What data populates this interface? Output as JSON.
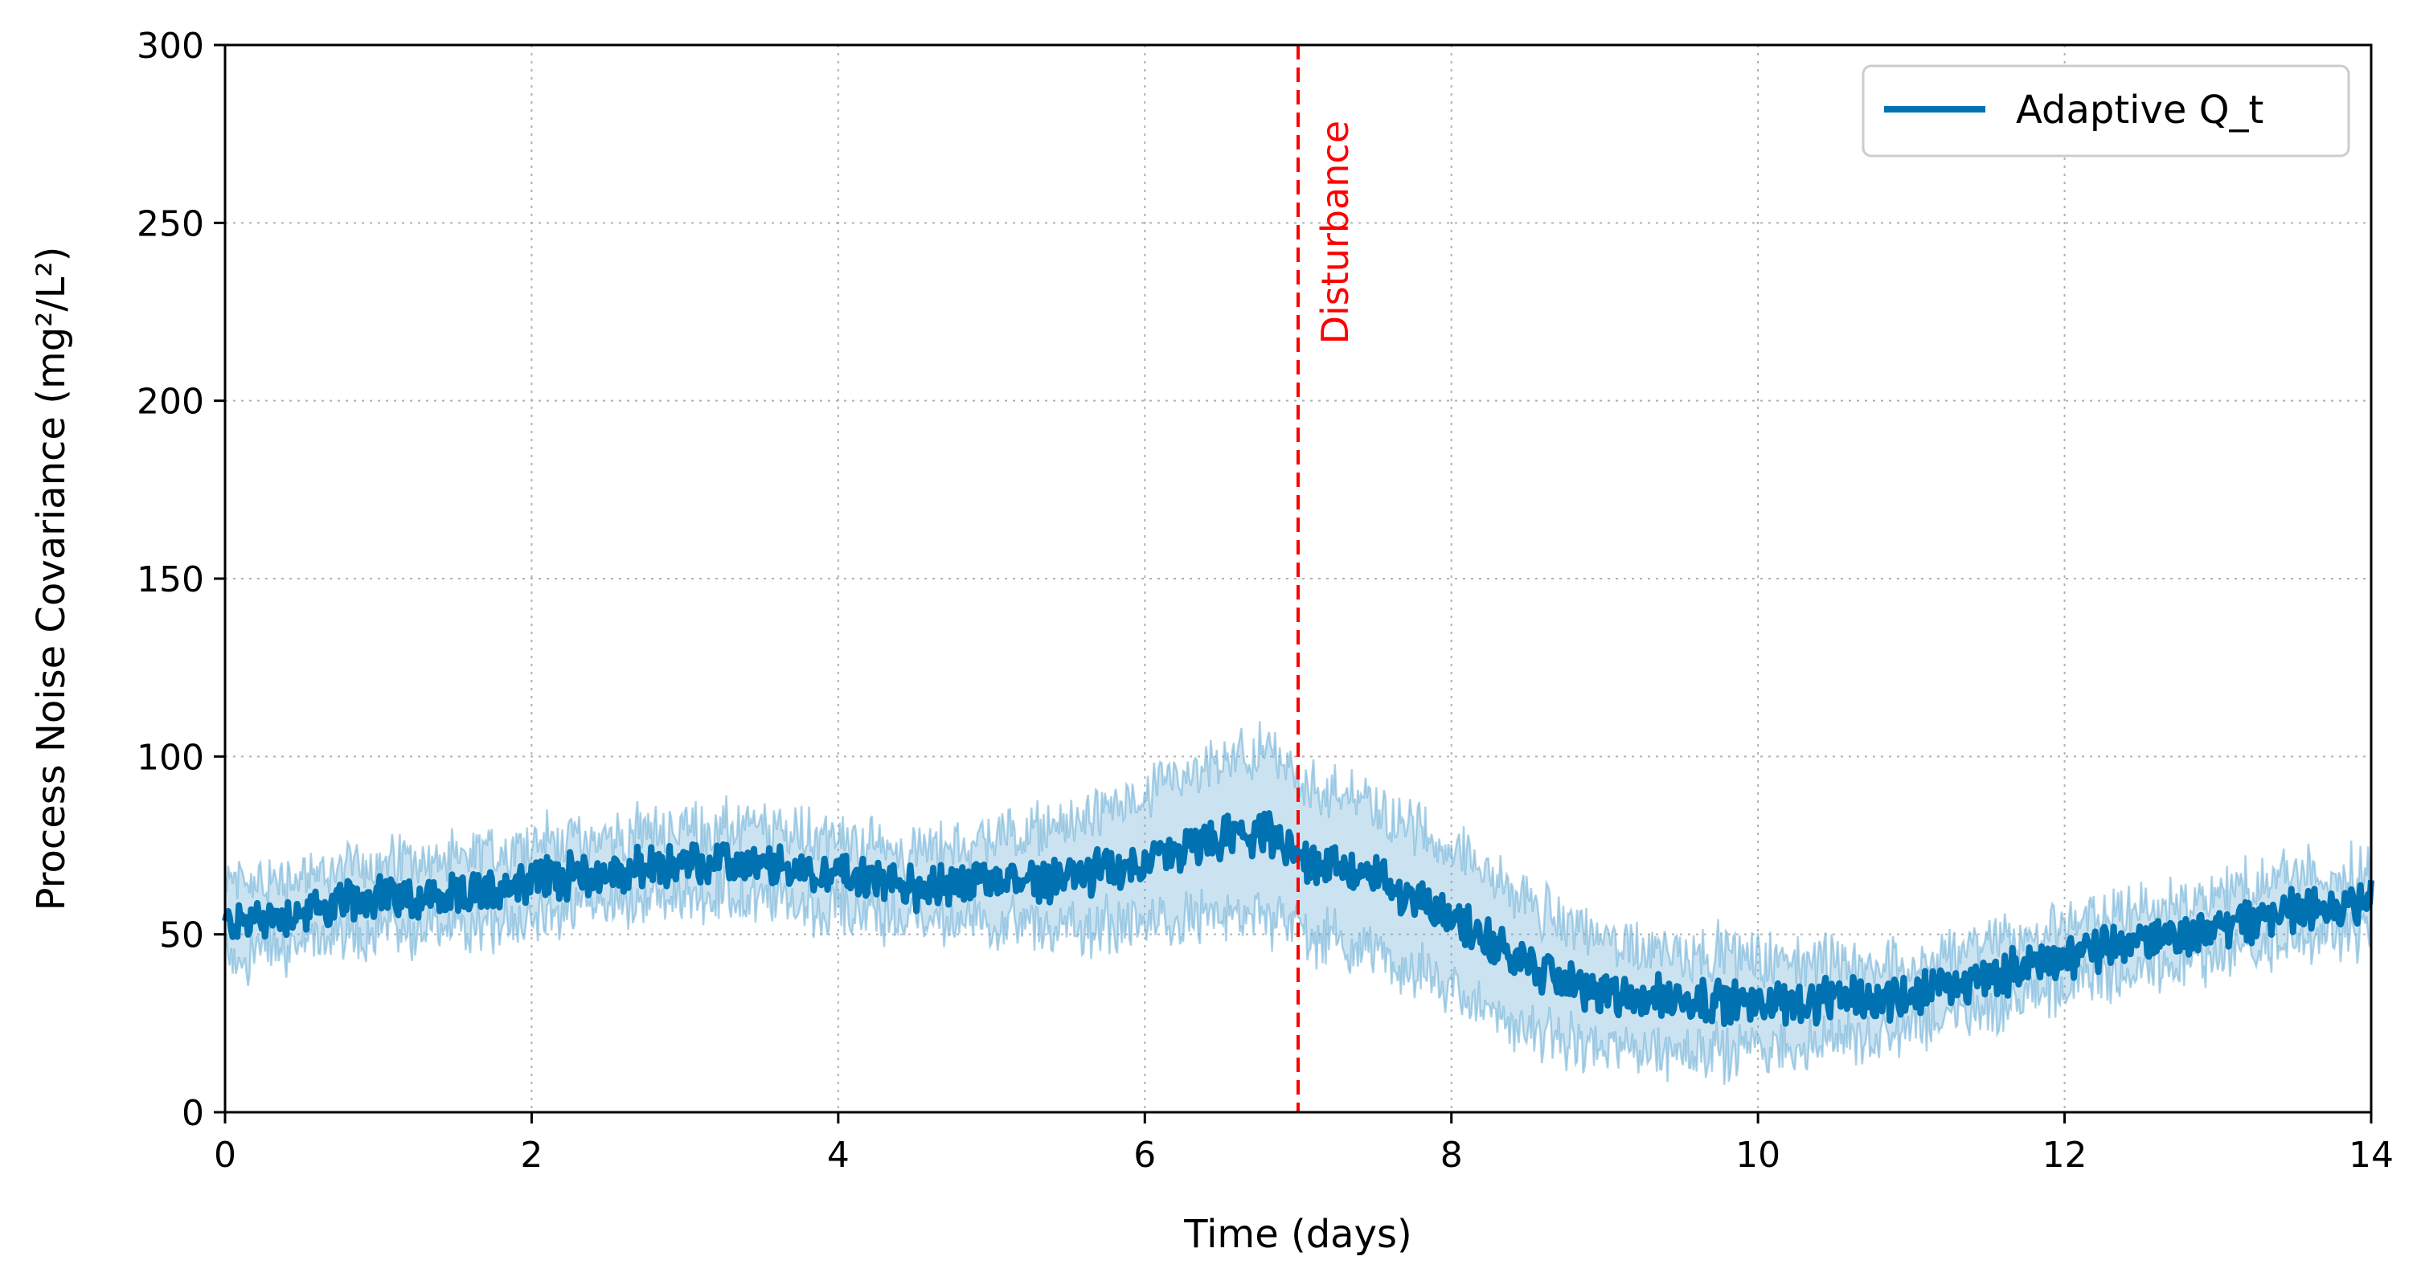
{
  "chart_data": {
    "type": "line",
    "xlabel": "Time (days)",
    "ylabel": "Process Noise Covariance (mg²/L²)",
    "xlim": [
      0,
      14
    ],
    "ylim": [
      0,
      300
    ],
    "xticks": [
      0,
      2,
      4,
      6,
      8,
      10,
      12,
      14
    ],
    "yticks": [
      0,
      50,
      100,
      150,
      200,
      250,
      300
    ],
    "grid": true,
    "legend": {
      "placement": "top-right",
      "entries": [
        "Adaptive Q_t"
      ]
    },
    "series": [
      {
        "name": "Adaptive Q_t",
        "color": "#0072B2",
        "band_color": "#6BAED6",
        "x": [
          0,
          0.5,
          1,
          1.5,
          2,
          2.5,
          3,
          3.5,
          4,
          4.5,
          5,
          5.5,
          6,
          6.5,
          6.8,
          7,
          7.5,
          8,
          8.5,
          9,
          9.5,
          10,
          10.5,
          11,
          11.5,
          12,
          12.5,
          13,
          13.5,
          14
        ],
        "mean": [
          53,
          56,
          61,
          60,
          66,
          67,
          70,
          69,
          67,
          63,
          65,
          66,
          70,
          77,
          78,
          72,
          66,
          55,
          41,
          33,
          32,
          31,
          31,
          33,
          38,
          44,
          48,
          52,
          57,
          60
        ],
        "lower": [
          43,
          47,
          51,
          51,
          56,
          58,
          61,
          60,
          57,
          54,
          53,
          51,
          53,
          55,
          55,
          52,
          45,
          35,
          22,
          17,
          17,
          18,
          20,
          24,
          29,
          35,
          40,
          44,
          49,
          52
        ],
        "upper": [
          64,
          66,
          71,
          70,
          76,
          77,
          80,
          79,
          77,
          73,
          78,
          81,
          88,
          98,
          101,
          93,
          86,
          75,
          59,
          48,
          46,
          43,
          42,
          42,
          47,
          53,
          57,
          61,
          66,
          69
        ]
      }
    ],
    "annotations": [
      {
        "type": "vline",
        "x": 7,
        "label": "Disturbance",
        "color": "#FF0000",
        "style": "dashed"
      }
    ]
  }
}
